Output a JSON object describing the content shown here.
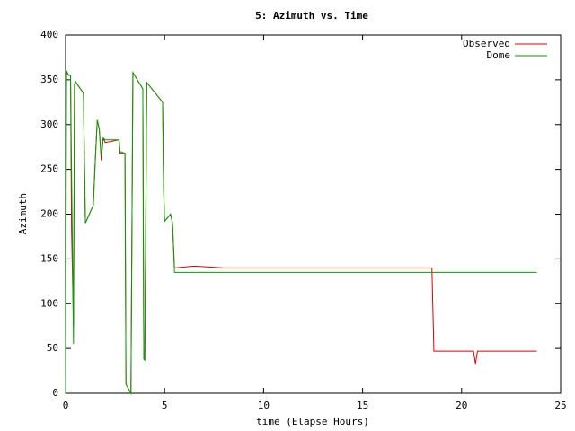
{
  "chart_data": {
    "type": "line",
    "title": "5: Azimuth vs. Time",
    "x_label": "time (Elapse Hours)",
    "y_label": "Azimuth",
    "x": [
      0,
      0.05,
      0.15,
      0.25,
      0.3,
      0.4,
      0.45,
      0.5,
      0.9,
      1.0,
      1.1,
      1.4,
      1.5,
      1.6,
      1.7,
      1.8,
      1.9,
      2.0,
      2.7,
      2.75,
      3.0,
      3.05,
      3.3,
      3.4,
      3.9,
      3.95,
      4.0,
      4.1,
      4.9,
      4.95,
      5.0,
      5.3,
      5.4,
      5.5,
      6.5,
      8.0,
      18.5,
      18.6,
      20.6,
      20.7,
      20.8,
      23.8
    ],
    "series": [
      {
        "name": "Observed",
        "color": "#dd0000",
        "values": [
          360,
          358,
          355,
          355,
          185,
          75,
          345,
          348,
          335,
          190,
          195,
          210,
          260,
          305,
          295,
          260,
          285,
          280,
          283,
          268,
          268,
          10,
          0,
          358,
          340,
          40,
          38,
          347,
          325,
          230,
          192,
          200,
          190,
          140,
          142,
          140,
          140,
          47,
          47,
          33,
          47,
          47
        ]
      },
      {
        "name": "Dome",
        "color": "#00a000",
        "values": [
          0,
          360,
          355,
          355,
          250,
          55,
          345,
          348,
          335,
          190,
          195,
          210,
          260,
          305,
          295,
          265,
          285,
          283,
          283,
          270,
          268,
          10,
          0,
          358,
          340,
          38,
          37,
          347,
          325,
          230,
          192,
          200,
          190,
          135,
          135,
          135,
          135,
          135,
          135,
          135,
          135,
          135
        ]
      }
    ],
    "xlim": [
      0,
      25
    ],
    "xticks": [
      0,
      5,
      10,
      15,
      20,
      25
    ],
    "ylim": [
      0,
      400
    ],
    "yticks": [
      0,
      50,
      100,
      150,
      200,
      250,
      300,
      350,
      400
    ],
    "legend": "top-right"
  }
}
